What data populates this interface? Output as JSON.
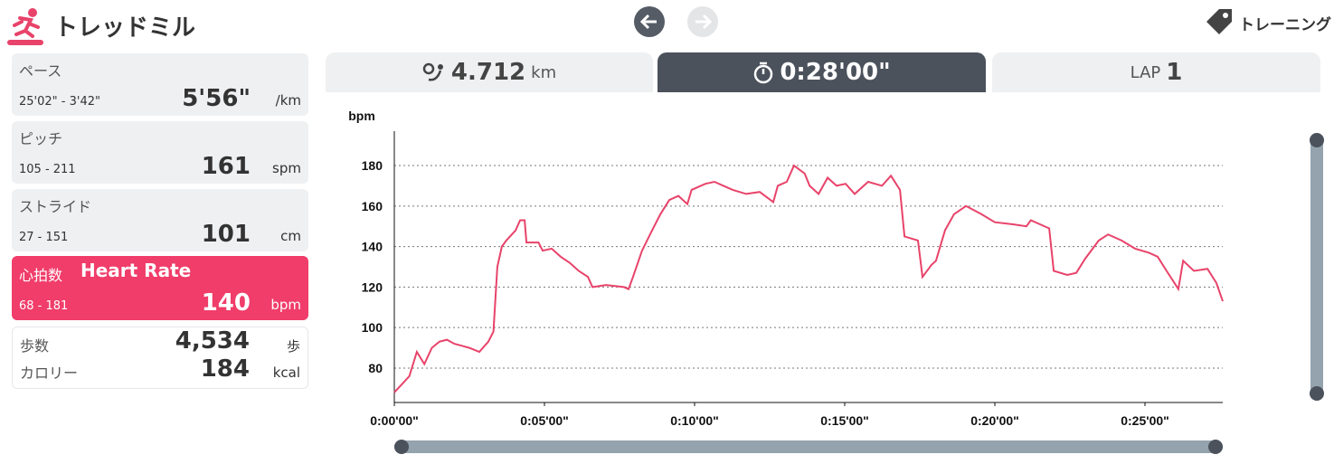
{
  "header": {
    "title": "トレッドミル",
    "action": "トレーニング"
  },
  "metrics": [
    {
      "label": "ペース",
      "range": "25'02\" - 3'42\"",
      "value": "5'56\"",
      "unit": "/km"
    },
    {
      "label": "ピッチ",
      "range": "105 - 211",
      "value": "161",
      "unit": "spm"
    },
    {
      "label": "ストライド",
      "range": "27 - 151",
      "value": "101",
      "unit": "cm"
    },
    {
      "label": "心拍数",
      "sublabel": "Heart Rate",
      "range": "68 - 181",
      "value": "140",
      "unit": "bpm"
    }
  ],
  "totals": [
    {
      "label": "歩数",
      "value": "4,534",
      "unit": "歩"
    },
    {
      "label": "カロリー",
      "value": "184",
      "unit": "kcal"
    }
  ],
  "tabs": [
    {
      "value": "4.712",
      "unit": "km"
    },
    {
      "value": "0:28'00\""
    },
    {
      "label": "LAP",
      "value": "1"
    }
  ],
  "chart_data": {
    "type": "line",
    "y_label": "bpm",
    "color": "#e8436a",
    "x": [
      0,
      0.25,
      0.5,
      0.75,
      1.0,
      1.25,
      1.5,
      1.75,
      2.0,
      2.25,
      2.5,
      2.83,
      3.13,
      3.3,
      3.43,
      3.58,
      3.73,
      4.04,
      4.19,
      4.34,
      4.4,
      4.8,
      4.94,
      5.24,
      5.54,
      5.84,
      6.14,
      6.45,
      6.6,
      7.05,
      7.65,
      7.8,
      7.95,
      8.25,
      8.55,
      8.86,
      9.16,
      9.46,
      9.76,
      9.9,
      10.36,
      10.66,
      10.96,
      11.27,
      11.72,
      12.17,
      12.62,
      12.77,
      13.07,
      13.31,
      13.67,
      13.83,
      14.13,
      14.43,
      14.73,
      15.03,
      15.33,
      15.78,
      16.24,
      16.54,
      16.84,
      16.99,
      17.44,
      17.59,
      17.89,
      18.04,
      18.34,
      18.64,
      19.04,
      19.55,
      20.0,
      20.6,
      21.05,
      21.2,
      21.81,
      21.96,
      22.41,
      22.71,
      23.01,
      23.46,
      23.77,
      24.22,
      24.67,
      25.12,
      25.42,
      25.72,
      26.11,
      26.27,
      26.63,
      27.08,
      27.38,
      27.59
    ],
    "values": [
      68,
      72,
      76,
      88,
      82,
      90,
      93,
      94,
      92,
      91,
      90,
      88,
      93,
      98,
      130,
      140,
      143,
      148,
      153,
      153,
      142,
      142,
      138,
      139,
      135,
      132,
      128,
      125,
      120,
      121,
      120,
      119,
      125,
      138,
      147,
      156,
      163,
      165,
      161,
      168,
      171,
      172,
      170,
      168,
      166,
      167,
      162,
      170,
      172,
      180,
      176,
      170,
      166,
      174,
      170,
      171,
      166,
      172,
      170,
      175,
      168,
      145,
      143,
      125,
      131,
      133,
      148,
      156,
      160,
      156,
      152,
      151,
      150,
      153,
      149,
      128,
      126,
      127,
      134,
      143,
      146,
      143,
      139,
      137,
      135,
      128,
      119,
      133,
      128,
      129,
      122,
      113
    ],
    "xlim": [
      0,
      27.59
    ],
    "ylim": [
      63,
      197
    ],
    "yticks": [
      80,
      100,
      120,
      140,
      160,
      180
    ],
    "xticks": [
      {
        "value": 0,
        "label": "0:00'00\""
      },
      {
        "value": 5,
        "label": "0:05'00\""
      },
      {
        "value": 10,
        "label": "0:10'00\""
      },
      {
        "value": 15,
        "label": "0:15'00\""
      },
      {
        "value": 20,
        "label": "0:20'00\""
      },
      {
        "value": 25,
        "label": "0:25'00\""
      }
    ],
    "grid": true
  }
}
